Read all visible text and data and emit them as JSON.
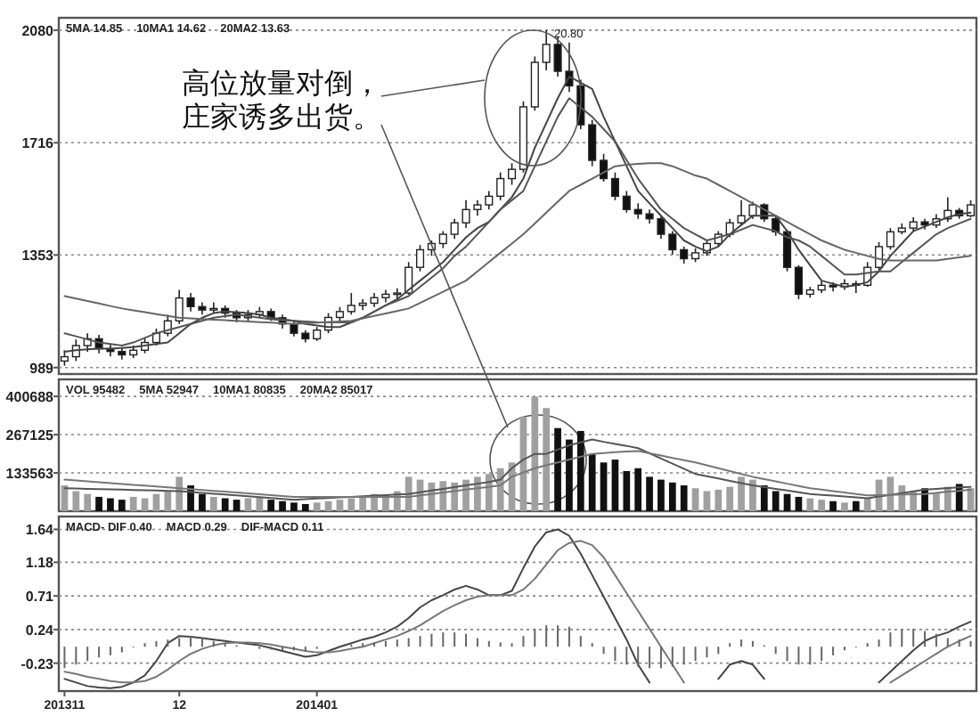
{
  "chart_data": [
    {
      "type": "candlestick",
      "categories": [
        "201311",
        null,
        null,
        null,
        null,
        null,
        null,
        null,
        null,
        null,
        "12",
        null,
        null,
        null,
        null,
        null,
        null,
        null,
        null,
        null,
        null,
        null,
        "201401",
        null,
        null,
        null,
        null,
        null,
        null,
        null,
        null,
        null,
        null,
        null,
        null,
        null,
        null,
        null,
        null,
        null,
        null,
        null,
        null,
        null,
        null,
        null,
        null,
        null,
        null,
        null,
        null,
        null,
        null,
        null,
        null,
        null,
        null,
        null,
        null,
        null,
        null,
        null,
        null,
        null,
        null,
        null,
        null,
        null,
        null,
        null,
        null,
        null,
        null,
        null,
        null,
        null,
        null,
        null,
        null,
        null
      ],
      "ohlc": [
        [
          1010,
          1045,
          995,
          1024
        ],
        [
          1024,
          1080,
          1010,
          1060
        ],
        [
          1060,
          1100,
          1040,
          1082
        ],
        [
          1082,
          1095,
          1035,
          1050
        ],
        [
          1050,
          1065,
          1025,
          1041
        ],
        [
          1041,
          1055,
          1015,
          1030
        ],
        [
          1030,
          1060,
          1020,
          1045
        ],
        [
          1045,
          1085,
          1035,
          1070
        ],
        [
          1070,
          1115,
          1060,
          1100
        ],
        [
          1100,
          1160,
          1090,
          1140
        ],
        [
          1140,
          1240,
          1130,
          1214
        ],
        [
          1214,
          1230,
          1170,
          1186
        ],
        [
          1186,
          1200,
          1160,
          1175
        ],
        [
          1175,
          1200,
          1165,
          1180
        ],
        [
          1180,
          1190,
          1150,
          1165
        ],
        [
          1165,
          1175,
          1135,
          1150
        ],
        [
          1150,
          1175,
          1140,
          1160
        ],
        [
          1160,
          1185,
          1150,
          1170
        ],
        [
          1170,
          1180,
          1140,
          1150
        ],
        [
          1150,
          1160,
          1115,
          1130
        ],
        [
          1130,
          1140,
          1090,
          1100
        ],
        [
          1100,
          1110,
          1070,
          1082
        ],
        [
          1082,
          1120,
          1075,
          1110
        ],
        [
          1110,
          1165,
          1100,
          1151
        ],
        [
          1151,
          1185,
          1140,
          1170
        ],
        [
          1170,
          1230,
          1160,
          1190
        ],
        [
          1190,
          1210,
          1175,
          1197
        ],
        [
          1197,
          1230,
          1185,
          1215
        ],
        [
          1215,
          1240,
          1200,
          1226
        ],
        [
          1226,
          1245,
          1205,
          1230
        ],
        [
          1230,
          1330,
          1225,
          1313
        ],
        [
          1313,
          1385,
          1300,
          1370
        ],
        [
          1370,
          1400,
          1350,
          1390
        ],
        [
          1390,
          1430,
          1375,
          1420
        ],
        [
          1420,
          1470,
          1405,
          1457
        ],
        [
          1457,
          1530,
          1440,
          1500
        ],
        [
          1500,
          1530,
          1480,
          1515
        ],
        [
          1515,
          1560,
          1500,
          1543
        ],
        [
          1543,
          1620,
          1530,
          1600
        ],
        [
          1600,
          1650,
          1580,
          1630
        ],
        [
          1630,
          1850,
          1620,
          1832
        ],
        [
          1832,
          1995,
          1820,
          1976
        ],
        [
          1976,
          2080,
          1950,
          2034
        ],
        [
          2034,
          2060,
          1930,
          1947
        ],
        [
          1947,
          2040,
          1880,
          1900
        ],
        [
          1900,
          1920,
          1760,
          1774
        ],
        [
          1774,
          1790,
          1640,
          1659
        ],
        [
          1659,
          1680,
          1590,
          1600
        ],
        [
          1600,
          1620,
          1530,
          1543
        ],
        [
          1543,
          1560,
          1490,
          1500
        ],
        [
          1500,
          1520,
          1470,
          1486
        ],
        [
          1486,
          1500,
          1455,
          1470
        ],
        [
          1470,
          1480,
          1405,
          1420
        ],
        [
          1420,
          1430,
          1355,
          1370
        ],
        [
          1370,
          1380,
          1325,
          1341
        ],
        [
          1341,
          1375,
          1330,
          1360
        ],
        [
          1360,
          1400,
          1350,
          1390
        ],
        [
          1390,
          1430,
          1380,
          1420
        ],
        [
          1420,
          1470,
          1410,
          1457
        ],
        [
          1457,
          1530,
          1450,
          1480
        ],
        [
          1480,
          1525,
          1470,
          1515
        ],
        [
          1515,
          1520,
          1460,
          1470
        ],
        [
          1470,
          1480,
          1415,
          1428
        ],
        [
          1428,
          1435,
          1300,
          1313
        ],
        [
          1313,
          1320,
          1210,
          1226
        ],
        [
          1226,
          1250,
          1215,
          1240
        ],
        [
          1240,
          1270,
          1230,
          1255
        ],
        [
          1255,
          1265,
          1235,
          1250
        ],
        [
          1250,
          1275,
          1240,
          1260
        ],
        [
          1260,
          1270,
          1230,
          1255
        ],
        [
          1255,
          1330,
          1250,
          1313
        ],
        [
          1313,
          1395,
          1305,
          1380
        ],
        [
          1380,
          1440,
          1370,
          1428
        ],
        [
          1428,
          1455,
          1420,
          1440
        ],
        [
          1440,
          1475,
          1430,
          1460
        ],
        [
          1460,
          1470,
          1435,
          1450
        ],
        [
          1450,
          1485,
          1440,
          1470
        ],
        [
          1470,
          1540,
          1460,
          1497
        ],
        [
          1497,
          1505,
          1470,
          1480
        ],
        [
          1480,
          1530,
          1475,
          1515
        ]
      ],
      "series": [
        {
          "type": "line",
          "color": "#444444",
          "values": [
            1040,
            1045,
            1048,
            1050,
            1050,
            1052,
            1055,
            1060,
            1065,
            1070,
            1100,
            1130,
            1150,
            1165,
            1170,
            1168,
            1165,
            1160,
            1150,
            1145,
            1140,
            1130,
            1125,
            1120,
            1120,
            1135,
            1150,
            1170,
            1190,
            1210,
            1240,
            1270,
            1300,
            1330,
            1370,
            1410,
            1440,
            1460,
            1500,
            1540,
            1600,
            1700,
            1780,
            1860,
            1930,
            1910,
            1890,
            1800,
            1720,
            1640,
            1560,
            1520,
            1480,
            1440,
            1400,
            1380,
            1365,
            1380,
            1420,
            1450,
            1480,
            1480,
            1480,
            1430,
            1370,
            1320,
            1270,
            1260,
            1250,
            1255,
            1265,
            1300,
            1350,
            1390,
            1430,
            1445,
            1460,
            1475,
            1485,
            1490
          ]
        },
        {
          "type": "line",
          "color": "#555555",
          "values": [
            1100,
            1090,
            1080,
            1070,
            1065,
            1060,
            1070,
            1085,
            1100,
            1110,
            1120,
            1130,
            1140,
            1150,
            1155,
            1160,
            1155,
            1150,
            1145,
            1142,
            1140,
            1138,
            1136,
            1135,
            1135,
            1135,
            1150,
            1170,
            1190,
            1205,
            1220,
            1250,
            1280,
            1310,
            1350,
            1380,
            1420,
            1460,
            1500,
            1530,
            1560,
            1640,
            1720,
            1800,
            1860,
            1830,
            1800,
            1760,
            1720,
            1660,
            1600,
            1550,
            1500,
            1470,
            1440,
            1420,
            1400,
            1410,
            1420,
            1435,
            1450,
            1440,
            1430,
            1410,
            1400,
            1380,
            1350,
            1320,
            1290,
            1290,
            1295,
            1300,
            1300,
            1330,
            1360,
            1390,
            1420,
            1440,
            1455,
            1470
          ]
        },
        {
          "type": "line",
          "color": "#666666",
          "values": [
            1220,
            1212,
            1204,
            1196,
            1188,
            1180,
            1174,
            1168,
            1162,
            1156,
            1150,
            1148,
            1146,
            1144,
            1142,
            1140,
            1138,
            1136,
            1134,
            1132,
            1130,
            1132,
            1134,
            1136,
            1138,
            1140,
            1148,
            1156,
            1164,
            1172,
            1180,
            1198,
            1216,
            1234,
            1252,
            1270,
            1300,
            1330,
            1360,
            1390,
            1420,
            1455,
            1490,
            1525,
            1560,
            1580,
            1600,
            1620,
            1640,
            1645,
            1648,
            1650,
            1650,
            1640,
            1625,
            1610,
            1600,
            1580,
            1560,
            1540,
            1520,
            1500,
            1480,
            1460,
            1440,
            1420,
            1400,
            1385,
            1370,
            1360,
            1350,
            1340,
            1335,
            1335,
            1335,
            1335,
            1335,
            1340,
            1345,
            1350
          ]
        }
      ],
      "ylim": [
        968,
        2120
      ],
      "yticks": [
        989,
        1353,
        1716,
        2080
      ],
      "grid": "y",
      "tick_labels": "y",
      "annotations": [
        "5MA 14.85",
        "10MA1 14.62",
        "20MA2 13.63",
        "高位放量对倒，",
        "庄家诱多出货。",
        "20.80"
      ]
    },
    {
      "type": "bar",
      "categories": [
        "201311",
        null,
        null,
        null,
        null,
        null,
        null,
        null,
        null,
        null,
        "12",
        null,
        null,
        null,
        null,
        null,
        null,
        null,
        null,
        null,
        null,
        null,
        "201401",
        null,
        null,
        null,
        null,
        null,
        null,
        null,
        null,
        null,
        null,
        null,
        null,
        null,
        null,
        null,
        null,
        null,
        null,
        null,
        null,
        null,
        null,
        null,
        null,
        null,
        null,
        null,
        null,
        null,
        null,
        null,
        null,
        null,
        null,
        null,
        null,
        null,
        null,
        null,
        null,
        null,
        null,
        null,
        null,
        null,
        null,
        null,
        null,
        null,
        null,
        null,
        null,
        null,
        null,
        null,
        null,
        null
      ],
      "values": [
        90000,
        70000,
        60000,
        50000,
        45000,
        40000,
        50000,
        45000,
        60000,
        70000,
        120000,
        90000,
        60000,
        50000,
        45000,
        40000,
        45000,
        50000,
        40000,
        35000,
        30000,
        25000,
        30000,
        35000,
        40000,
        45000,
        50000,
        60000,
        55000,
        70000,
        120000,
        110000,
        100000,
        105000,
        100000,
        110000,
        120000,
        130000,
        150000,
        170000,
        330000,
        400000,
        360000,
        290000,
        250000,
        280000,
        200000,
        170000,
        180000,
        140000,
        150000,
        120000,
        110000,
        100000,
        90000,
        80000,
        70000,
        75000,
        85000,
        120000,
        110000,
        90000,
        70000,
        60000,
        50000,
        45000,
        40000,
        35000,
        30000,
        35000,
        45000,
        110000,
        120000,
        90000,
        70000,
        80000,
        65000,
        85000,
        95000,
        80000
      ],
      "colors": [
        "#a0a0a0",
        "#a0a0a0",
        "#a0a0a0",
        "#111111",
        "#111111",
        "#111111",
        "#a0a0a0",
        "#a0a0a0",
        "#a0a0a0",
        "#a0a0a0",
        "#a0a0a0",
        "#111111",
        "#111111",
        "#a0a0a0",
        "#111111",
        "#111111",
        "#a0a0a0",
        "#a0a0a0",
        "#111111",
        "#111111",
        "#111111",
        "#111111",
        "#a0a0a0",
        "#a0a0a0",
        "#a0a0a0",
        "#a0a0a0",
        "#a0a0a0",
        "#a0a0a0",
        "#a0a0a0",
        "#a0a0a0",
        "#a0a0a0",
        "#a0a0a0",
        "#a0a0a0",
        "#a0a0a0",
        "#a0a0a0",
        "#a0a0a0",
        "#a0a0a0",
        "#a0a0a0",
        "#a0a0a0",
        "#a0a0a0",
        "#a0a0a0",
        "#a0a0a0",
        "#a0a0a0",
        "#111111",
        "#111111",
        "#111111",
        "#111111",
        "#111111",
        "#111111",
        "#111111",
        "#111111",
        "#111111",
        "#111111",
        "#111111",
        "#111111",
        "#a0a0a0",
        "#a0a0a0",
        "#a0a0a0",
        "#a0a0a0",
        "#a0a0a0",
        "#a0a0a0",
        "#111111",
        "#111111",
        "#111111",
        "#111111",
        "#a0a0a0",
        "#a0a0a0",
        "#111111",
        "#a0a0a0",
        "#111111",
        "#a0a0a0",
        "#a0a0a0",
        "#a0a0a0",
        "#a0a0a0",
        "#a0a0a0",
        "#111111",
        "#a0a0a0",
        "#a0a0a0",
        "#111111",
        "#a0a0a0"
      ],
      "series": [
        {
          "type": "line",
          "color": "#555555",
          "values": [
            80000,
            79000,
            78000,
            77000,
            76000,
            75000,
            74000,
            73000,
            72000,
            71000,
            70000,
            67000,
            64000,
            61000,
            58000,
            55000,
            52000,
            49000,
            46000,
            43000,
            40000,
            42000,
            44000,
            46000,
            48000,
            50000,
            52000,
            54000,
            56000,
            58000,
            60000,
            66000,
            72000,
            78000,
            84000,
            90000,
            96000,
            102000,
            110000,
            150000,
            180000,
            200000,
            200000,
            215000,
            230000,
            240000,
            250000,
            242000,
            235000,
            228000,
            220000,
            202000,
            184000,
            166000,
            148000,
            130000,
            122000,
            114000,
            106000,
            98000,
            90000,
            84000,
            78000,
            72000,
            66000,
            60000,
            57000,
            54000,
            51000,
            48000,
            45000,
            51000,
            57000,
            63000,
            69000,
            75000,
            78000,
            81000,
            83000,
            85000
          ]
        },
        {
          "type": "line",
          "color": "#777777",
          "values": [
            110000,
            107000,
            104000,
            101000,
            98000,
            95000,
            92000,
            89000,
            86000,
            83000,
            80000,
            77000,
            74000,
            71000,
            68000,
            65000,
            62000,
            59000,
            56000,
            53000,
            50000,
            50000,
            50000,
            50000,
            50000,
            50000,
            50000,
            50000,
            50000,
            50000,
            50000,
            55000,
            60000,
            65000,
            70000,
            75000,
            80000,
            85000,
            90000,
            120000,
            135000,
            150000,
            160000,
            170000,
            180000,
            190000,
            200000,
            203000,
            206000,
            208000,
            210000,
            202000,
            194000,
            186000,
            178000,
            170000,
            160000,
            150000,
            140000,
            130000,
            120000,
            112000,
            104000,
            96000,
            88000,
            80000,
            75000,
            70000,
            65000,
            60000,
            55000,
            56000,
            57000,
            58000,
            59000,
            60000,
            64000,
            68000,
            71000,
            75000
          ]
        }
      ],
      "ylim": [
        0,
        460000
      ],
      "yticks": [
        133563,
        267125,
        400688
      ],
      "grid": "y",
      "tick_labels": "y",
      "annotations": [
        "VOL 95482",
        "5MA 52947",
        "10MA1 80835",
        "20MA2 85017"
      ]
    },
    {
      "type": "line",
      "categories": [
        "201311",
        null,
        null,
        null,
        null,
        null,
        null,
        null,
        null,
        null,
        "12",
        null,
        null,
        null,
        null,
        null,
        null,
        null,
        null,
        null,
        null,
        null,
        "201401",
        null,
        null,
        null,
        null,
        null,
        null,
        null,
        null,
        null,
        null,
        null,
        null,
        null,
        null,
        null,
        null,
        null,
        null,
        null,
        null,
        null,
        null,
        null,
        null,
        null,
        null,
        null,
        null,
        null,
        null,
        null,
        null,
        null,
        null,
        null,
        null,
        null,
        null,
        null,
        null,
        null,
        null,
        null,
        null,
        null,
        null,
        null,
        null,
        null,
        null,
        null,
        null,
        null,
        null,
        null,
        null,
        null
      ],
      "series": [
        {
          "type": "line",
          "color": "#444444",
          "values": [
            -0.45,
            -0.5,
            -0.55,
            -0.57,
            -0.58,
            -0.56,
            -0.5,
            -0.4,
            -0.2,
            0.05,
            0.15,
            0.14,
            0.12,
            0.1,
            0.08,
            0.06,
            0.04,
            0.02,
            -0.02,
            -0.06,
            -0.1,
            -0.14,
            -0.12,
            -0.06,
            0.0,
            0.05,
            0.1,
            0.14,
            0.2,
            0.28,
            0.4,
            0.55,
            0.65,
            0.72,
            0.8,
            0.85,
            0.8,
            0.72,
            0.72,
            0.78,
            1.1,
            1.4,
            1.6,
            1.64,
            1.55,
            1.3,
            1.0,
            0.7,
            0.4,
            0.1,
            -0.25,
            -0.5,
            null,
            null,
            null,
            null,
            null,
            -0.45,
            -0.25,
            -0.2,
            -0.25,
            -0.45,
            null,
            null,
            null,
            null,
            null,
            null,
            null,
            null,
            null,
            -0.5,
            -0.35,
            -0.2,
            -0.05,
            0.08,
            0.15,
            0.2,
            0.28,
            0.35
          ]
        },
        {
          "type": "line",
          "color": "#777777",
          "values": [
            -0.35,
            -0.38,
            -0.42,
            -0.45,
            -0.48,
            -0.5,
            -0.5,
            -0.48,
            -0.42,
            -0.32,
            -0.2,
            -0.1,
            -0.03,
            0.02,
            0.05,
            0.06,
            0.06,
            0.05,
            0.03,
            0.0,
            -0.03,
            -0.06,
            -0.08,
            -0.08,
            -0.06,
            -0.03,
            0.0,
            0.05,
            0.1,
            0.15,
            0.22,
            0.3,
            0.4,
            0.5,
            0.58,
            0.65,
            0.7,
            0.72,
            0.72,
            0.72,
            0.8,
            0.95,
            1.15,
            1.35,
            1.45,
            1.48,
            1.42,
            1.25,
            1.0,
            0.75,
            0.5,
            0.25,
            0.0,
            -0.25,
            -0.5,
            null,
            null,
            null,
            null,
            null,
            null,
            null,
            null,
            null,
            null,
            null,
            null,
            null,
            null,
            null,
            null,
            null,
            -0.5,
            -0.4,
            -0.3,
            -0.2,
            -0.1,
            0.0,
            0.08,
            0.15
          ]
        },
        {
          "type": "bar",
          "color": "#666666",
          "values": [
            -0.3,
            -0.25,
            -0.2,
            -0.15,
            -0.12,
            -0.08,
            0.0,
            0.05,
            0.08,
            0.1,
            0.12,
            0.15,
            0.12,
            0.08,
            0.05,
            0.02,
            null,
            -0.03,
            -0.04,
            -0.05,
            -0.05,
            -0.06,
            -0.03,
            null,
            0.0,
            0.03,
            0.05,
            0.06,
            0.08,
            0.1,
            0.12,
            0.15,
            0.18,
            0.2,
            0.2,
            0.18,
            0.12,
            0.08,
            0.06,
            0.05,
            0.15,
            0.25,
            0.3,
            0.3,
            0.28,
            0.15,
            0.05,
            -0.1,
            -0.2,
            -0.25,
            -0.28,
            -0.3,
            -0.3,
            -0.28,
            -0.25,
            -0.2,
            -0.15,
            -0.1,
            0.05,
            0.1,
            0.08,
            0.02,
            -0.1,
            -0.2,
            -0.25,
            -0.25,
            -0.2,
            -0.12,
            -0.05,
            0.0,
            0.05,
            0.1,
            0.2,
            0.25,
            0.25,
            0.22,
            0.18,
            0.12,
            0.1,
            0.08
          ]
        }
      ],
      "ylim": [
        -0.62,
        1.82
      ],
      "yticks": [
        -0.23,
        0.24,
        0.71,
        1.18,
        1.64
      ],
      "grid": "y",
      "annotations": [
        "MACD- DIF 0.40",
        "MACD 0.29",
        "DIF-MACD 0.11"
      ]
    }
  ]
}
